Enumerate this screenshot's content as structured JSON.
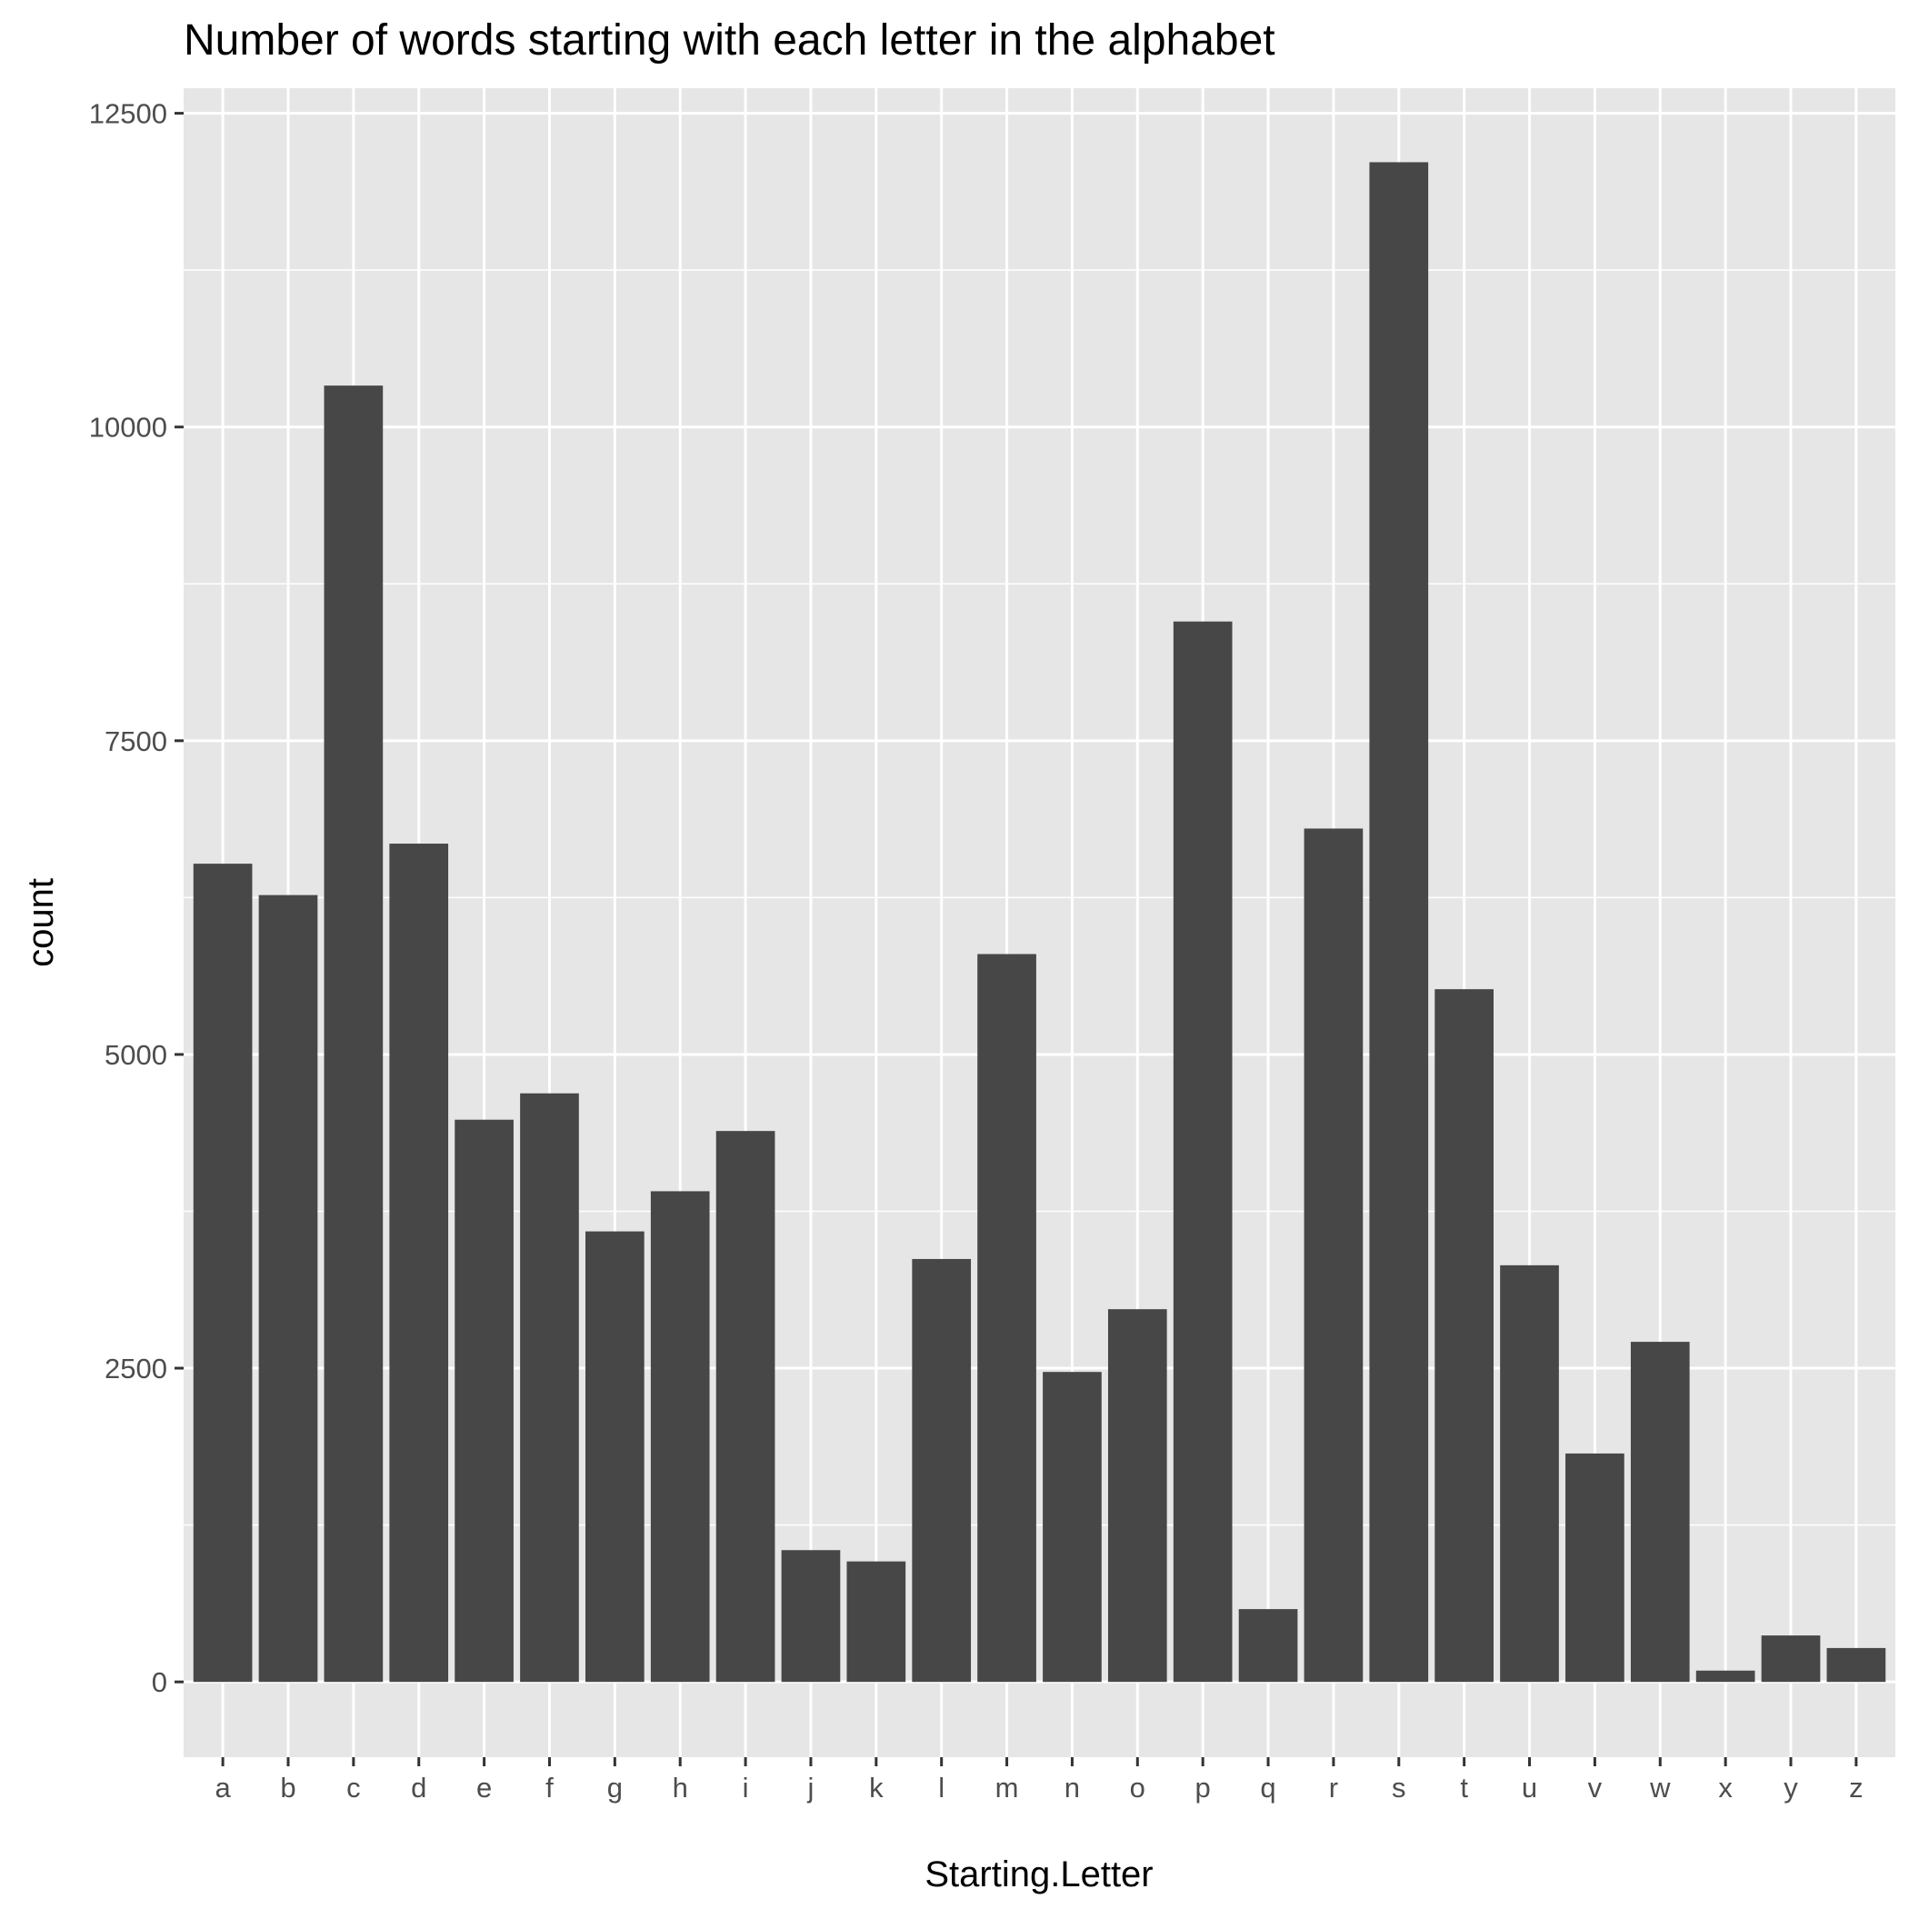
{
  "chart_data": {
    "type": "bar",
    "title": "Number of words starting with each letter in the alphabet",
    "xlabel": "Starting.Letter",
    "ylabel": "count",
    "categories": [
      "a",
      "b",
      "c",
      "d",
      "e",
      "f",
      "g",
      "h",
      "i",
      "j",
      "k",
      "l",
      "m",
      "n",
      "o",
      "p",
      "q",
      "r",
      "s",
      "t",
      "u",
      "v",
      "w",
      "x",
      "y",
      "z"
    ],
    "values": [
      6520,
      6270,
      10330,
      6680,
      4480,
      4690,
      3590,
      3910,
      4390,
      1050,
      960,
      3370,
      5800,
      2470,
      2970,
      8450,
      580,
      6800,
      12110,
      5520,
      3320,
      1820,
      2710,
      90,
      370,
      270
    ],
    "ylim": [
      -600,
      12700
    ],
    "yticks": [
      0,
      2500,
      5000,
      7500,
      10000,
      12500
    ],
    "ytick_labels": [
      "0",
      "2500",
      "5000",
      "7500",
      "10000",
      "12500"
    ],
    "grid": true,
    "colors": {
      "bar": "#474747",
      "panel": "#e6e6e6",
      "grid": "#ffffff"
    }
  }
}
